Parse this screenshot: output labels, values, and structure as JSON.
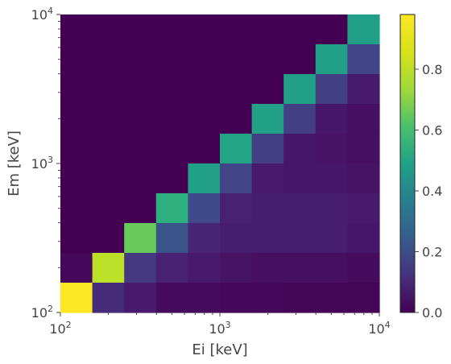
{
  "chart_data": {
    "type": "heatmap",
    "title": "",
    "xlabel": "Ei [keV]",
    "ylabel": "Em [keV]",
    "x_scale": "log",
    "y_scale": "log",
    "xlim": [
      100,
      10000
    ],
    "ylim": [
      100,
      10000
    ],
    "bins_per_axis": 10,
    "x_tick_labels": [
      {
        "base": "10",
        "exp": "2"
      },
      {
        "base": "10",
        "exp": "3"
      },
      {
        "base": "10",
        "exp": "4"
      }
    ],
    "y_tick_labels": [
      {
        "base": "10",
        "exp": "2"
      },
      {
        "base": "10",
        "exp": "3"
      },
      {
        "base": "10",
        "exp": "4"
      }
    ],
    "colormap": "viridis",
    "colorbar": {
      "range": [
        0.0,
        0.98
      ],
      "ticks": [
        0.0,
        0.2,
        0.4,
        0.6,
        0.8
      ],
      "tick_labels": [
        "0.0",
        "0.2",
        "0.4",
        "0.6",
        "0.8"
      ]
    },
    "values_row_order": "top-to-bottom (highest Em first); columns left-to-right (lowest Ei first)",
    "values": [
      [
        0.0,
        0.0,
        0.0,
        0.0,
        0.0,
        0.0,
        0.0,
        0.0,
        0.0,
        0.55
      ],
      [
        0.0,
        0.0,
        0.0,
        0.0,
        0.0,
        0.0,
        0.0,
        0.0,
        0.55,
        0.2
      ],
      [
        0.0,
        0.0,
        0.0,
        0.0,
        0.0,
        0.0,
        0.0,
        0.55,
        0.18,
        0.07
      ],
      [
        0.0,
        0.0,
        0.0,
        0.0,
        0.0,
        0.0,
        0.56,
        0.18,
        0.06,
        0.04
      ],
      [
        0.0,
        0.0,
        0.0,
        0.0,
        0.0,
        0.57,
        0.18,
        0.06,
        0.05,
        0.04
      ],
      [
        0.0,
        0.0,
        0.0,
        0.0,
        0.55,
        0.2,
        0.07,
        0.06,
        0.06,
        0.05
      ],
      [
        0.0,
        0.0,
        0.0,
        0.62,
        0.22,
        0.09,
        0.08,
        0.08,
        0.08,
        0.07
      ],
      [
        0.0,
        0.0,
        0.75,
        0.25,
        0.1,
        0.08,
        0.08,
        0.08,
        0.08,
        0.06
      ],
      [
        0.02,
        0.88,
        0.16,
        0.09,
        0.07,
        0.05,
        0.04,
        0.04,
        0.04,
        0.03
      ],
      [
        0.98,
        0.12,
        0.07,
        0.03,
        0.03,
        0.02,
        0.02,
        0.01,
        0.01,
        0.01
      ]
    ]
  }
}
